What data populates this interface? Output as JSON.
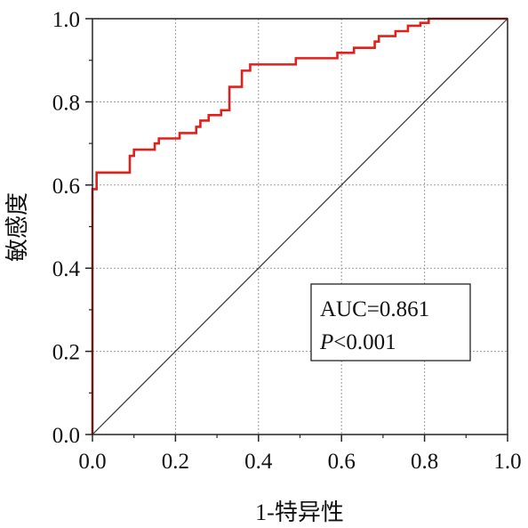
{
  "chart_data": {
    "type": "line",
    "xlabel": "1-特异性",
    "ylabel": "敏感度",
    "xlim": [
      0,
      1
    ],
    "ylim": [
      0,
      1
    ],
    "x_ticks": [
      "0.0",
      "0.2",
      "0.4",
      "0.6",
      "0.8",
      "1.0"
    ],
    "y_ticks": [
      "0.0",
      "0.2",
      "0.4",
      "0.6",
      "0.8",
      "1.0"
    ],
    "grid": true,
    "series": [
      {
        "color": "#e0201b",
        "x": [
          0,
          0,
          0.01,
          0.01,
          0.09,
          0.09,
          0.1,
          0.1,
          0.15,
          0.15,
          0.16,
          0.16,
          0.21,
          0.21,
          0.25,
          0.25,
          0.26,
          0.26,
          0.28,
          0.28,
          0.31,
          0.31,
          0.33,
          0.33,
          0.36,
          0.36,
          0.38,
          0.38,
          0.49,
          0.49,
          0.59,
          0.59,
          0.63,
          0.63,
          0.68,
          0.68,
          0.69,
          0.69,
          0.73,
          0.73,
          0.76,
          0.76,
          0.79,
          0.79,
          0.81,
          0.81,
          1.0
        ],
        "y": [
          0,
          0.59,
          0.59,
          0.63,
          0.63,
          0.67,
          0.67,
          0.685,
          0.685,
          0.7,
          0.7,
          0.712,
          0.712,
          0.725,
          0.725,
          0.74,
          0.74,
          0.755,
          0.755,
          0.768,
          0.768,
          0.78,
          0.78,
          0.836,
          0.836,
          0.875,
          0.875,
          0.89,
          0.89,
          0.905,
          0.905,
          0.918,
          0.918,
          0.93,
          0.93,
          0.945,
          0.945,
          0.958,
          0.958,
          0.97,
          0.97,
          0.983,
          0.983,
          0.99,
          0.99,
          1.0,
          1.0
        ]
      },
      {
        "color": "#333333",
        "x": [
          0,
          1
        ],
        "y": [
          0,
          1
        ]
      }
    ],
    "annotations": [
      "AUC=0.861"
    ],
    "annotation_p_symbol": "P",
    "annotation_p_value": "<0.001"
  }
}
